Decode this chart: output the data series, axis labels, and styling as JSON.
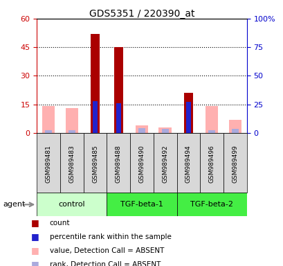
{
  "title": "GDS5351 / 220390_at",
  "samples": [
    "GSM989481",
    "GSM989483",
    "GSM989485",
    "GSM989488",
    "GSM989490",
    "GSM989492",
    "GSM989494",
    "GSM989496",
    "GSM989499"
  ],
  "count": [
    0,
    0,
    52,
    45,
    0,
    0,
    21,
    0,
    0
  ],
  "percentile_rank": [
    0,
    0,
    28,
    26,
    0,
    0,
    27,
    0,
    0
  ],
  "absent_value": [
    14,
    13,
    0,
    0,
    4,
    3,
    0,
    14,
    7
  ],
  "absent_rank": [
    2.5,
    2.5,
    0,
    0,
    4,
    3.5,
    0,
    2.5,
    3.5
  ],
  "left_ylim": [
    0,
    60
  ],
  "right_ylim": [
    0,
    100
  ],
  "left_yticks": [
    0,
    15,
    30,
    45,
    60
  ],
  "right_yticks": [
    0,
    25,
    50,
    75,
    100
  ],
  "right_yticklabels": [
    "0",
    "25",
    "50",
    "75",
    "100%"
  ],
  "left_ycolor": "#cc0000",
  "right_ycolor": "#0000cc",
  "count_color": "#aa0000",
  "rank_color": "#2222cc",
  "absent_value_color": "#ffb0b0",
  "absent_rank_color": "#aaaadd",
  "group_info": [
    {
      "label": "control",
      "start": 0,
      "end": 2,
      "color": "#ccffcc"
    },
    {
      "label": "TGF-beta-1",
      "start": 3,
      "end": 5,
      "color": "#44ee44"
    },
    {
      "label": "TGF-beta-2",
      "start": 6,
      "end": 8,
      "color": "#44ee44"
    }
  ],
  "legend_items": [
    {
      "color": "#aa0000",
      "label": "count"
    },
    {
      "color": "#2222cc",
      "label": "percentile rank within the sample"
    },
    {
      "color": "#ffb0b0",
      "label": "value, Detection Call = ABSENT"
    },
    {
      "color": "#aaaadd",
      "label": "rank, Detection Call = ABSENT"
    }
  ],
  "agent_label": "agent"
}
